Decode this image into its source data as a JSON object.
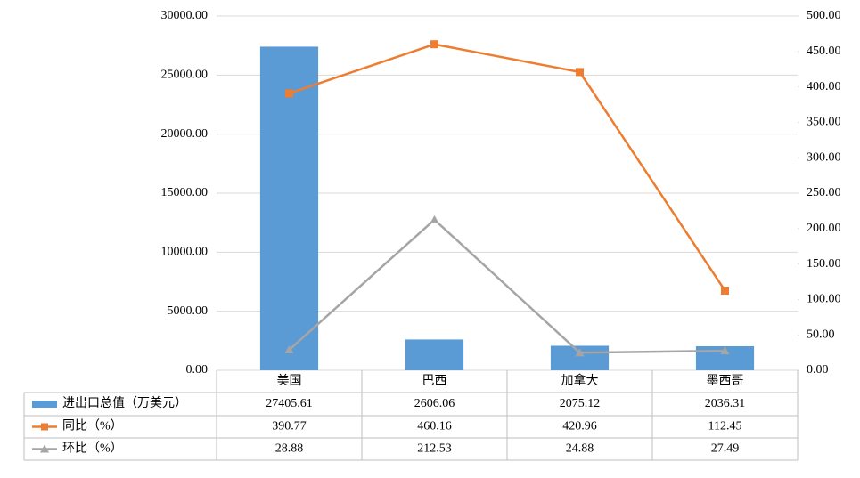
{
  "chart_data": {
    "type": "bar",
    "categories": [
      "美国",
      "巴西",
      "加拿大",
      "墨西哥"
    ],
    "series": [
      {
        "name": "进出口总值（万美元）",
        "type": "bar",
        "color": "#5b9bd5",
        "values": [
          27405.61,
          2606.06,
          2075.12,
          2036.31
        ]
      },
      {
        "name": "同比（%）",
        "type": "line",
        "marker": "square",
        "axis": "y2",
        "color": "#ed7d31",
        "values": [
          390.77,
          460.16,
          420.96,
          112.45
        ]
      },
      {
        "name": "环比（%）",
        "type": "line",
        "marker": "triangle",
        "axis": "y2",
        "color": "#a5a5a5",
        "values": [
          28.88,
          212.53,
          24.88,
          27.49
        ]
      }
    ],
    "ylim": [
      0,
      30000
    ],
    "yticks": [
      {
        "value": 0,
        "label": "0.00"
      },
      {
        "value": 5000,
        "label": "5000.00"
      },
      {
        "value": 10000,
        "label": "10000.00"
      },
      {
        "value": 15000,
        "label": "15000.00"
      },
      {
        "value": 20000,
        "label": "20000.00"
      },
      {
        "value": 25000,
        "label": "25000.00"
      },
      {
        "value": 30000,
        "label": "30000.00"
      }
    ],
    "y2lim": [
      0,
      500
    ],
    "y2ticks": [
      {
        "value": 0,
        "label": "0.00"
      },
      {
        "value": 50,
        "label": "50.00"
      },
      {
        "value": 100,
        "label": "100.00"
      },
      {
        "value": 150,
        "label": "150.00"
      },
      {
        "value": 200,
        "label": "200.00"
      },
      {
        "value": 250,
        "label": "250.00"
      },
      {
        "value": 300,
        "label": "300.00"
      },
      {
        "value": 350,
        "label": "350.00"
      },
      {
        "value": 400,
        "label": "400.00"
      },
      {
        "value": 450,
        "label": "450.00"
      },
      {
        "value": 500,
        "label": "500.00"
      }
    ],
    "grid": true,
    "data_table": true
  }
}
